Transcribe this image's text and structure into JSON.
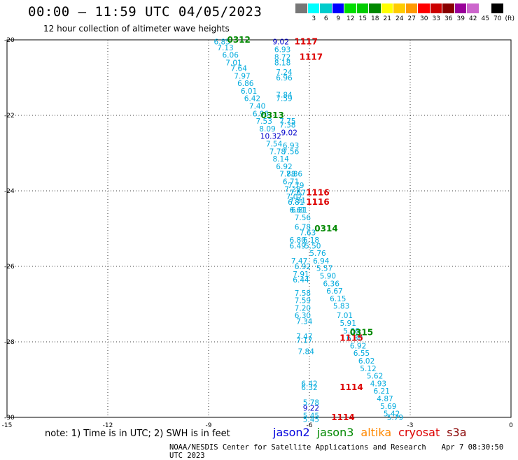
{
  "header": {
    "title": "00:00 – 11:59 UTC 04/05/2023",
    "subtitle": "12 hour collection of altimeter wave heights"
  },
  "legend": {
    "colors": [
      "#777777",
      "#00ffff",
      "#00cccc",
      "#0000ff",
      "#00dd00",
      "#00cc00",
      "#008800",
      "#ffff00",
      "#ffcc00",
      "#ff9900",
      "#ff0000",
      "#cc0000",
      "#880000",
      "#990099",
      "#cc66cc",
      "#ffffff",
      "#000000"
    ],
    "labels": [
      "",
      "3",
      "6",
      "9",
      "12",
      "15",
      "18",
      "21",
      "24",
      "27",
      "30",
      "33",
      "36",
      "39",
      "42",
      "45",
      "70"
    ],
    "unit": "(ft)"
  },
  "chart_data": {
    "type": "scatter",
    "xlim": [
      -15,
      0
    ],
    "ylim": [
      -30,
      -20
    ],
    "xticks": [
      "-15",
      "-12",
      "-9",
      "-6",
      "-3",
      "0"
    ],
    "yticks": [
      "-20",
      "-22",
      "-24",
      "-26",
      "-28",
      "-30"
    ],
    "grid": true,
    "swh_points": [
      {
        "lon": -8.6,
        "lat": -20.05,
        "v": "6.85",
        "c": "#00aadd"
      },
      {
        "lon": -8.5,
        "lat": -20.2,
        "v": "7.13",
        "c": "#00aadd"
      },
      {
        "lon": -8.35,
        "lat": -20.4,
        "v": "6.06",
        "c": "#00aadd"
      },
      {
        "lon": -8.25,
        "lat": -20.6,
        "v": "7.01",
        "c": "#00aadd"
      },
      {
        "lon": -8.1,
        "lat": -20.75,
        "v": "7.64",
        "c": "#00aadd"
      },
      {
        "lon": -8.0,
        "lat": -20.95,
        "v": "7.97",
        "c": "#00aadd"
      },
      {
        "lon": -7.9,
        "lat": -21.15,
        "v": "6.86",
        "c": "#00aadd"
      },
      {
        "lon": -7.8,
        "lat": -21.35,
        "v": "6.01",
        "c": "#00aadd"
      },
      {
        "lon": -7.7,
        "lat": -21.55,
        "v": "6.42",
        "c": "#00aadd"
      },
      {
        "lon": -7.55,
        "lat": -21.75,
        "v": "7.40",
        "c": "#00aadd"
      },
      {
        "lon": -7.45,
        "lat": -21.95,
        "v": "6.96",
        "c": "#00aadd"
      },
      {
        "lon": -7.35,
        "lat": -22.15,
        "v": "7.53",
        "c": "#00aadd"
      },
      {
        "lon": -7.25,
        "lat": -22.35,
        "v": "8.09",
        "c": "#00aadd"
      },
      {
        "lon": -7.15,
        "lat": -22.55,
        "v": "10.32",
        "c": "#0000cc"
      },
      {
        "lon": -7.05,
        "lat": -22.75,
        "v": "7.54",
        "c": "#00aadd"
      },
      {
        "lon": -6.95,
        "lat": -22.95,
        "v": "7.78",
        "c": "#00aadd"
      },
      {
        "lon": -6.85,
        "lat": -23.15,
        "v": "8.14",
        "c": "#00aadd"
      },
      {
        "lon": -6.75,
        "lat": -23.35,
        "v": "6.92",
        "c": "#00aadd"
      },
      {
        "lon": -6.65,
        "lat": -23.55,
        "v": "7.88",
        "c": "#00aadd"
      },
      {
        "lon": -6.55,
        "lat": -23.75,
        "v": "6.71",
        "c": "#00aadd"
      },
      {
        "lon": -6.5,
        "lat": -23.95,
        "v": "7.28",
        "c": "#00aadd"
      },
      {
        "lon": -6.45,
        "lat": -24.15,
        "v": "7.07",
        "c": "#00aadd"
      },
      {
        "lon": -6.4,
        "lat": -24.3,
        "v": "6.81",
        "c": "#00aadd"
      },
      {
        "lon": -6.35,
        "lat": -24.5,
        "v": "6.61",
        "c": "#00aadd"
      },
      {
        "lon": -6.2,
        "lat": -24.7,
        "v": "7.56",
        "c": "#00aadd"
      },
      {
        "lon": -6.2,
        "lat": -24.95,
        "v": "6.78",
        "c": "#00aadd"
      },
      {
        "lon": -6.05,
        "lat": -25.1,
        "v": "7.63",
        "c": "#00aadd"
      },
      {
        "lon": -6.35,
        "lat": -25.3,
        "v": "6.80",
        "c": "#00aadd"
      },
      {
        "lon": -6.35,
        "lat": -25.45,
        "v": "6.49",
        "c": "#00aadd"
      },
      {
        "lon": -5.95,
        "lat": -25.3,
        "v": "6.18",
        "c": "#00aadd"
      },
      {
        "lon": -5.9,
        "lat": -25.45,
        "v": "5.50",
        "c": "#00aadd"
      },
      {
        "lon": -5.75,
        "lat": -25.65,
        "v": "5.76",
        "c": "#00aadd"
      },
      {
        "lon": -5.65,
        "lat": -25.85,
        "v": "6.94",
        "c": "#00aadd"
      },
      {
        "lon": -6.3,
        "lat": -25.85,
        "v": "7.47",
        "c": "#00aadd"
      },
      {
        "lon": -6.2,
        "lat": -26.0,
        "v": "6.92",
        "c": "#00aadd"
      },
      {
        "lon": -5.55,
        "lat": -26.05,
        "v": "5.57",
        "c": "#00aadd"
      },
      {
        "lon": -5.45,
        "lat": -26.25,
        "v": "5.90",
        "c": "#00aadd"
      },
      {
        "lon": -6.25,
        "lat": -26.2,
        "v": "7.91",
        "c": "#00aadd"
      },
      {
        "lon": -6.25,
        "lat": -26.35,
        "v": "6.44",
        "c": "#00aadd"
      },
      {
        "lon": -5.35,
        "lat": -26.45,
        "v": "6.36",
        "c": "#00aadd"
      },
      {
        "lon": -5.25,
        "lat": -26.65,
        "v": "6.67",
        "c": "#00aadd"
      },
      {
        "lon": -6.2,
        "lat": -26.7,
        "v": "7.58",
        "c": "#00aadd"
      },
      {
        "lon": -6.2,
        "lat": -26.9,
        "v": "7.59",
        "c": "#00aadd"
      },
      {
        "lon": -5.15,
        "lat": -26.85,
        "v": "6.15",
        "c": "#00aadd"
      },
      {
        "lon": -5.05,
        "lat": -27.05,
        "v": "5.83",
        "c": "#00aadd"
      },
      {
        "lon": -6.2,
        "lat": -27.1,
        "v": "7.20",
        "c": "#00aadd"
      },
      {
        "lon": -6.2,
        "lat": -27.3,
        "v": "6.30",
        "c": "#00aadd"
      },
      {
        "lon": -4.95,
        "lat": -27.3,
        "v": "7.01",
        "c": "#00aadd"
      },
      {
        "lon": -6.15,
        "lat": -27.45,
        "v": "7.34",
        "c": "#00aadd"
      },
      {
        "lon": -4.85,
        "lat": -27.5,
        "v": "5.91",
        "c": "#00aadd"
      },
      {
        "lon": -4.75,
        "lat": -27.7,
        "v": "5.66",
        "c": "#00aadd"
      },
      {
        "lon": -4.65,
        "lat": -27.9,
        "v": "6.30",
        "c": "#00aadd"
      },
      {
        "lon": -6.15,
        "lat": -27.85,
        "v": "7.47",
        "c": "#00aadd"
      },
      {
        "lon": -6.15,
        "lat": -27.95,
        "v": "7.17",
        "c": "#00aadd"
      },
      {
        "lon": -4.55,
        "lat": -28.1,
        "v": "6.92",
        "c": "#00aadd"
      },
      {
        "lon": -4.45,
        "lat": -28.3,
        "v": "6.55",
        "c": "#00aadd"
      },
      {
        "lon": -6.1,
        "lat": -28.25,
        "v": "7.84",
        "c": "#00aadd"
      },
      {
        "lon": -4.3,
        "lat": -28.5,
        "v": "6.02",
        "c": "#00aadd"
      },
      {
        "lon": -4.25,
        "lat": -28.7,
        "v": "5.12",
        "c": "#00aadd"
      },
      {
        "lon": -4.05,
        "lat": -28.9,
        "v": "5.62",
        "c": "#00aadd"
      },
      {
        "lon": -3.95,
        "lat": -29.1,
        "v": "4.93",
        "c": "#00aadd"
      },
      {
        "lon": -6.0,
        "lat": -29.1,
        "v": "6.42",
        "c": "#00aadd"
      },
      {
        "lon": -6.0,
        "lat": -29.2,
        "v": "6.32",
        "c": "#00aadd"
      },
      {
        "lon": -3.85,
        "lat": -29.3,
        "v": "6.21",
        "c": "#00aadd"
      },
      {
        "lon": -3.75,
        "lat": -29.5,
        "v": "4.87",
        "c": "#00aadd"
      },
      {
        "lon": -5.95,
        "lat": -29.6,
        "v": "5.78",
        "c": "#00aadd"
      },
      {
        "lon": -5.95,
        "lat": -29.75,
        "v": "9.22",
        "c": "#0000cc"
      },
      {
        "lon": -3.65,
        "lat": -29.7,
        "v": "5.69",
        "c": "#00aadd"
      },
      {
        "lon": -3.55,
        "lat": -29.9,
        "v": "5.42",
        "c": "#00aadd"
      },
      {
        "lon": -5.95,
        "lat": -29.95,
        "v": "5.45",
        "c": "#00aadd"
      },
      {
        "lon": -5.95,
        "lat": -30.05,
        "v": "5.45",
        "c": "#00aadd"
      },
      {
        "lon": -3.45,
        "lat": -30.0,
        "v": "5.79",
        "c": "#00aadd"
      },
      {
        "lon": -6.85,
        "lat": -20.05,
        "v": "9.02",
        "c": "#0000cc"
      },
      {
        "lon": -6.8,
        "lat": -20.25,
        "v": "6.93",
        "c": "#00aadd"
      },
      {
        "lon": -6.8,
        "lat": -20.45,
        "v": "8.72",
        "c": "#00aadd"
      },
      {
        "lon": -6.8,
        "lat": -20.6,
        "v": "8.18",
        "c": "#00aadd"
      },
      {
        "lon": -6.75,
        "lat": -20.85,
        "v": "7.24",
        "c": "#00aadd"
      },
      {
        "lon": -6.75,
        "lat": -21.0,
        "v": "6.96",
        "c": "#00aadd"
      },
      {
        "lon": -6.75,
        "lat": -21.45,
        "v": "7.84",
        "c": "#00aadd"
      },
      {
        "lon": -6.75,
        "lat": -21.55,
        "v": "7.59",
        "c": "#00aadd"
      },
      {
        "lon": -6.65,
        "lat": -22.15,
        "v": "7.75",
        "c": "#00aadd"
      },
      {
        "lon": -6.65,
        "lat": -22.25,
        "v": "7.38",
        "c": "#00aadd"
      },
      {
        "lon": -6.6,
        "lat": -22.45,
        "v": "9.02",
        "c": "#0000cc"
      },
      {
        "lon": -6.55,
        "lat": -22.8,
        "v": "6.93",
        "c": "#00aadd"
      },
      {
        "lon": -6.55,
        "lat": -22.95,
        "v": "7.56",
        "c": "#00aadd"
      },
      {
        "lon": -6.45,
        "lat": -23.55,
        "v": "7.86",
        "c": "#00aadd"
      },
      {
        "lon": -6.4,
        "lat": -23.85,
        "v": "7.79",
        "c": "#00aadd"
      },
      {
        "lon": -6.35,
        "lat": -24.05,
        "v": "7.67",
        "c": "#00aadd"
      },
      {
        "lon": -6.35,
        "lat": -24.25,
        "v": "7.51",
        "c": "#00aadd"
      },
      {
        "lon": -6.3,
        "lat": -24.5,
        "v": "6.81",
        "c": "#00aadd"
      }
    ],
    "pass_labels": [
      {
        "lon": -8.1,
        "lat": -20.0,
        "v": "0312",
        "c": "#008800"
      },
      {
        "lon": -6.1,
        "lat": -20.05,
        "v": "1117",
        "c": "#dd0000"
      },
      {
        "lon": -5.95,
        "lat": -20.45,
        "v": "1117",
        "c": "#dd0000"
      },
      {
        "lon": -7.1,
        "lat": -22.0,
        "v": "0313",
        "c": "#008800"
      },
      {
        "lon": -5.75,
        "lat": -24.05,
        "v": "1116",
        "c": "#dd0000"
      },
      {
        "lon": -5.75,
        "lat": -24.3,
        "v": "1116",
        "c": "#dd0000"
      },
      {
        "lon": -5.5,
        "lat": -25.0,
        "v": "0314",
        "c": "#008800"
      },
      {
        "lon": -4.75,
        "lat": -27.9,
        "v": "1115",
        "c": "#dd0000"
      },
      {
        "lon": -4.45,
        "lat": -27.75,
        "v": "0315",
        "c": "#008800"
      },
      {
        "lon": -4.75,
        "lat": -29.2,
        "v": "1114",
        "c": "#dd0000"
      },
      {
        "lon": -5.0,
        "lat": -30.0,
        "v": "1114",
        "c": "#dd0000"
      }
    ]
  },
  "footer": {
    "note": "note:  1) Time is in UTC;  2) SWH is in feet",
    "satellites": [
      {
        "name": "jason2",
        "color": "#0000dd"
      },
      {
        "name": "jason3",
        "color": "#008800"
      },
      {
        "name": "altika",
        "color": "#ff8800"
      },
      {
        "name": "cryosat",
        "color": "#dd0000"
      },
      {
        "name": "s3a",
        "color": "#880000"
      }
    ],
    "credit_left": "NOAA/NESDIS Center for Satellite Applications and Research",
    "credit_right": "Apr  7 08:30:50 UTC 2023"
  }
}
